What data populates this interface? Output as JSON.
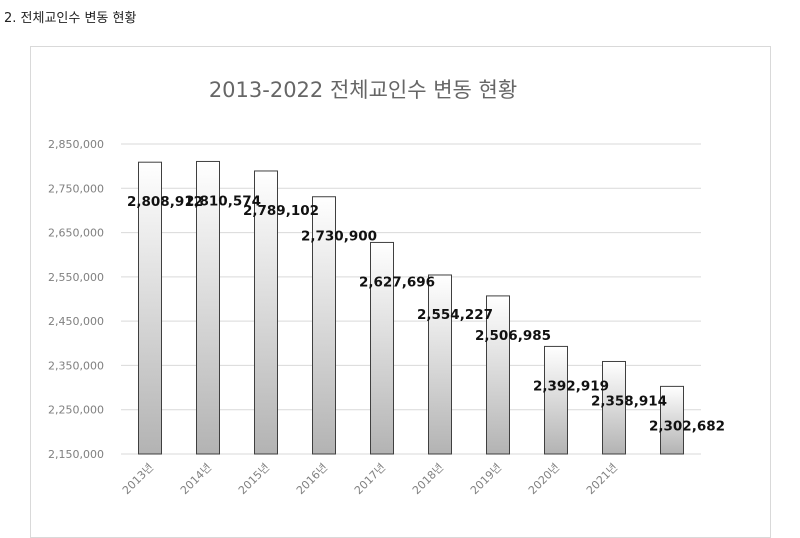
{
  "section_heading": "2. 전체교인수 변동 현황",
  "colors": {
    "bar_light": "#ffffff",
    "bar_dark": "#b3b3b3",
    "bar_stroke": "#3f3f3f",
    "grid": "#d9d9d9",
    "axis_text": "#808080",
    "title_text": "#666666",
    "label_text": "#111111"
  },
  "chart_data": {
    "type": "bar",
    "title": "2013-2022 전체교인수 변동 현황",
    "xlabel": "",
    "ylabel": "",
    "categories": [
      "2013년",
      "2014년",
      "2015년",
      "2016년",
      "2017년",
      "2018년",
      "2019년",
      "2020년",
      "2021년",
      ""
    ],
    "values": [
      2808912,
      2810574,
      2789102,
      2730900,
      2627696,
      2554227,
      2506985,
      2392919,
      2358914,
      2302682
    ],
    "data_labels": [
      "2,808,912",
      "2,810,574",
      "2,789,102",
      "2,730,900",
      "2,627,696",
      "2,554,227",
      "2,506,985",
      "2,392,919",
      "2,358,914",
      "2,302,682"
    ],
    "ylim": [
      2150000,
      2850000
    ],
    "yticks": [
      2150000,
      2250000,
      2350000,
      2450000,
      2550000,
      2650000,
      2750000,
      2850000
    ],
    "ytick_labels": [
      "2,150,000",
      "2,250,000",
      "2,350,000",
      "2,450,000",
      "2,550,000",
      "2,650,000",
      "2,750,000",
      "2,850,000"
    ],
    "grid": true,
    "legend": "none"
  }
}
